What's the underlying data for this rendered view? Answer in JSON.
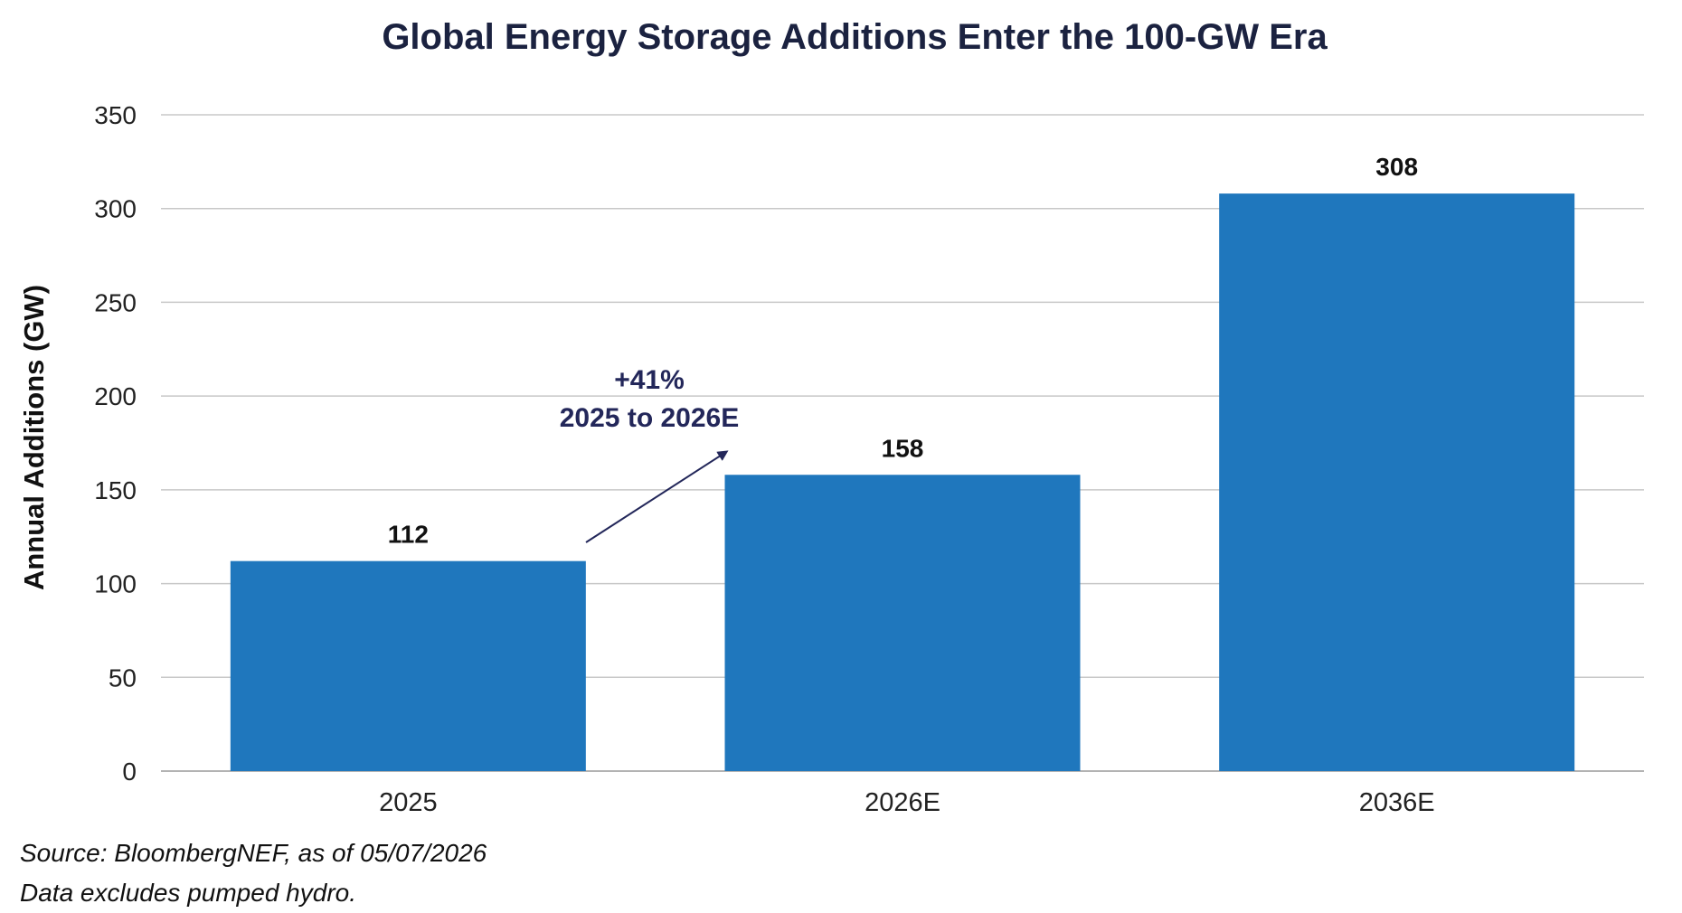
{
  "title": "Global Energy Storage Additions Enter the 100-GW Era",
  "colors": {
    "bar": "#1f77bd",
    "annotation": "#23275a",
    "title": "#1b2240",
    "grid": "#c8c8c8"
  },
  "chart_data": {
    "type": "bar",
    "title": "Global Energy Storage Additions Enter the 100-GW Era",
    "categories": [
      "2025",
      "2026E",
      "2036E"
    ],
    "values": [
      112,
      158,
      308
    ],
    "value_labels": [
      "112",
      "158",
      "308"
    ],
    "xlabel": "",
    "ylabel": "Annual Additions (GW)",
    "ylim": [
      0,
      350
    ],
    "yticks": [
      0,
      50,
      100,
      150,
      200,
      250,
      300,
      350
    ],
    "ytick_labels": [
      "0",
      "50",
      "100",
      "150",
      "200",
      "250",
      "300",
      "350"
    ],
    "grid": true,
    "annotation": {
      "line1": "+41%",
      "line2": "2025 to 2026E"
    }
  },
  "source": {
    "line1": "Source: BloombergNEF, as of 05/07/2026",
    "line2": "Data excludes pumped hydro."
  }
}
